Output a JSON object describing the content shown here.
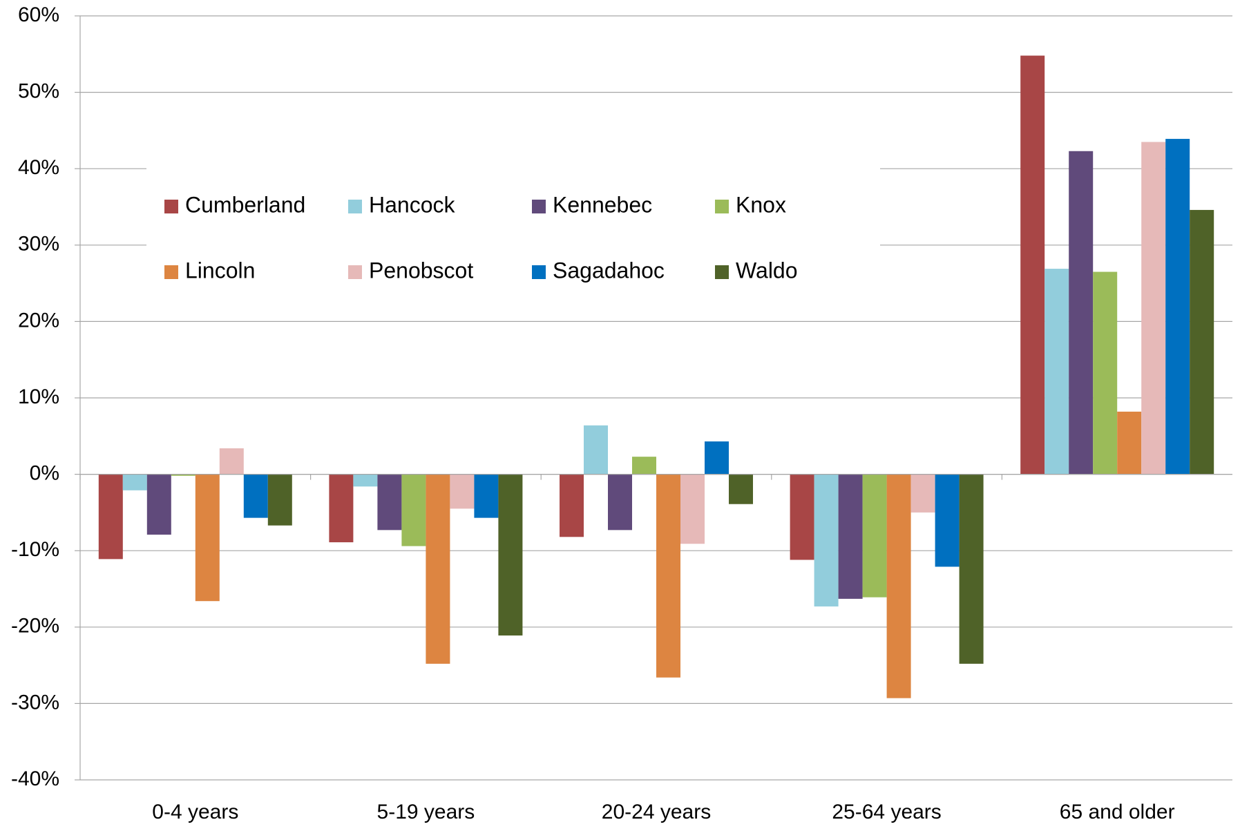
{
  "chart_data": {
    "type": "bar",
    "categories": [
      "0-4 years",
      "5-19 years",
      "20-24 years",
      "25-64 years",
      "65 and older"
    ],
    "series": [
      {
        "name": "Cumberland",
        "color": "#a84646",
        "values": [
          -11.1,
          -8.9,
          -8.2,
          -11.2,
          54.8
        ]
      },
      {
        "name": "Hancock",
        "color": "#92cddc",
        "values": [
          -2.1,
          -1.6,
          6.4,
          -17.3,
          26.9
        ]
      },
      {
        "name": "Kennebec",
        "color": "#604a7b",
        "values": [
          -7.9,
          -7.3,
          -7.3,
          -16.3,
          42.3
        ]
      },
      {
        "name": "Knox",
        "color": "#9bbb59",
        "values": [
          -0.2,
          -9.4,
          2.3,
          -16.1,
          26.5
        ]
      },
      {
        "name": "Lincoln",
        "color": "#dd8541",
        "values": [
          -16.6,
          -24.8,
          -26.6,
          -29.3,
          8.2
        ]
      },
      {
        "name": "Penobscot",
        "color": "#e6b9b8",
        "values": [
          3.4,
          -4.5,
          -9.1,
          -5.0,
          43.5
        ]
      },
      {
        "name": "Sagadahoc",
        "color": "#0070c0",
        "values": [
          -5.7,
          -5.7,
          4.3,
          -12.1,
          43.9
        ]
      },
      {
        "name": "Waldo",
        "color": "#4f6228",
        "values": [
          -6.7,
          -21.1,
          -3.9,
          -24.8,
          34.6
        ]
      }
    ],
    "ylim": [
      -40,
      60
    ],
    "yticks": [
      {
        "value": -40,
        "label": "-40%"
      },
      {
        "value": -30,
        "label": "-30%"
      },
      {
        "value": -20,
        "label": "-20%"
      },
      {
        "value": -10,
        "label": "-10%"
      },
      {
        "value": 0,
        "label": "0%"
      },
      {
        "value": 10,
        "label": "10%"
      },
      {
        "value": 20,
        "label": "20%"
      },
      {
        "value": 30,
        "label": "30%"
      },
      {
        "value": 40,
        "label": "40%"
      },
      {
        "value": 50,
        "label": "50%"
      },
      {
        "value": 60,
        "label": "60%"
      }
    ],
    "grid": true,
    "legend": "upper left"
  }
}
